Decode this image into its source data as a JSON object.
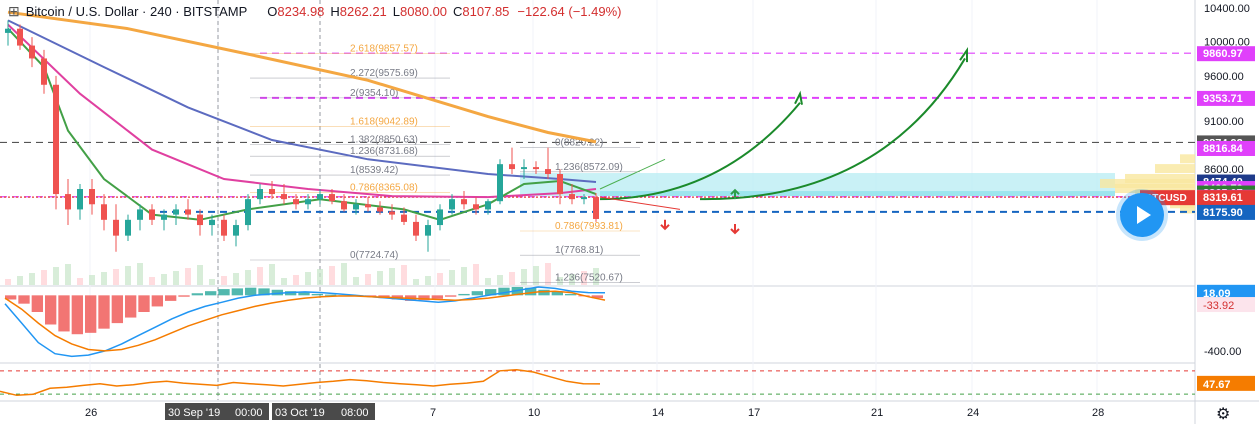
{
  "header": {
    "title": "Bitcoin / U.S. Dollar · 240 · BITSTAMP",
    "open_label": "O",
    "open": "8234.98",
    "high_label": "H",
    "high": "8262.21",
    "low_label": "L",
    "low": "8080.00",
    "close_label": "C",
    "close": "8107.85",
    "change": "−122.64 (−1.49%)"
  },
  "chart_data": [
    {
      "type": "line",
      "panel": "price",
      "scale": "log",
      "ylim": [
        7500,
        10500
      ],
      "yticks": [
        "10400.00",
        "10000.00",
        "9600.00",
        "9100.00",
        "8600.00"
      ],
      "xticks": [
        "26",
        "30 Sep '19",
        "00:00",
        "03 Oct '19",
        "08:00",
        "7",
        "10",
        "14",
        "17",
        "21",
        "24",
        "28"
      ],
      "x_range": [
        0,
        100
      ],
      "candles": [
        {
          "x": 0,
          "o": 10100,
          "h": 10250,
          "l": 9950,
          "c": 10150
        },
        {
          "x": 1,
          "o": 10150,
          "h": 10200,
          "l": 9900,
          "c": 9950
        },
        {
          "x": 2,
          "o": 9950,
          "h": 10050,
          "l": 9700,
          "c": 9800
        },
        {
          "x": 3,
          "o": 9800,
          "h": 9900,
          "l": 9400,
          "c": 9500
        },
        {
          "x": 4,
          "o": 9500,
          "h": 9600,
          "l": 8200,
          "c": 8350
        },
        {
          "x": 5,
          "o": 8350,
          "h": 8500,
          "l": 8050,
          "c": 8200
        },
        {
          "x": 6,
          "o": 8200,
          "h": 8450,
          "l": 8100,
          "c": 8400
        },
        {
          "x": 7,
          "o": 8400,
          "h": 8500,
          "l": 8150,
          "c": 8250
        },
        {
          "x": 8,
          "o": 8250,
          "h": 8350,
          "l": 8000,
          "c": 8100
        },
        {
          "x": 9,
          "o": 8100,
          "h": 8250,
          "l": 7800,
          "c": 7950
        },
        {
          "x": 10,
          "o": 7950,
          "h": 8150,
          "l": 7900,
          "c": 8100
        },
        {
          "x": 11,
          "o": 8100,
          "h": 8250,
          "l": 8000,
          "c": 8200
        },
        {
          "x": 12,
          "o": 8200,
          "h": 8250,
          "l": 8050,
          "c": 8100
        },
        {
          "x": 13,
          "o": 8100,
          "h": 8200,
          "l": 8000,
          "c": 8150
        },
        {
          "x": 14,
          "o": 8150,
          "h": 8250,
          "l": 8050,
          "c": 8200
        },
        {
          "x": 15,
          "o": 8200,
          "h": 8300,
          "l": 8100,
          "c": 8150
        },
        {
          "x": 16,
          "o": 8150,
          "h": 8200,
          "l": 7950,
          "c": 8050
        },
        {
          "x": 17,
          "o": 8050,
          "h": 8150,
          "l": 7950,
          "c": 8100
        },
        {
          "x": 18,
          "o": 8100,
          "h": 8150,
          "l": 7900,
          "c": 7950
        },
        {
          "x": 19,
          "o": 7950,
          "h": 8100,
          "l": 7850,
          "c": 8050
        },
        {
          "x": 20,
          "o": 8050,
          "h": 8350,
          "l": 8000,
          "c": 8300
        },
        {
          "x": 21,
          "o": 8300,
          "h": 8450,
          "l": 8250,
          "c": 8400
        },
        {
          "x": 22,
          "o": 8400,
          "h": 8480,
          "l": 8300,
          "c": 8350
        },
        {
          "x": 23,
          "o": 8350,
          "h": 8450,
          "l": 8250,
          "c": 8300
        },
        {
          "x": 24,
          "o": 8300,
          "h": 8350,
          "l": 8200,
          "c": 8250
        },
        {
          "x": 25,
          "o": 8250,
          "h": 8350,
          "l": 8200,
          "c": 8300
        },
        {
          "x": 26,
          "o": 8300,
          "h": 8400,
          "l": 8250,
          "c": 8350
        },
        {
          "x": 27,
          "o": 8350,
          "h": 8400,
          "l": 8250,
          "c": 8280
        },
        {
          "x": 28,
          "o": 8280,
          "h": 8350,
          "l": 8180,
          "c": 8200
        },
        {
          "x": 29,
          "o": 8200,
          "h": 8300,
          "l": 8150,
          "c": 8250
        },
        {
          "x": 30,
          "o": 8250,
          "h": 8320,
          "l": 8180,
          "c": 8220
        },
        {
          "x": 31,
          "o": 8220,
          "h": 8280,
          "l": 8150,
          "c": 8180
        },
        {
          "x": 32,
          "o": 8180,
          "h": 8250,
          "l": 8100,
          "c": 8150
        },
        {
          "x": 33,
          "o": 8150,
          "h": 8220,
          "l": 8050,
          "c": 8080
        },
        {
          "x": 34,
          "o": 8080,
          "h": 8150,
          "l": 7900,
          "c": 7950
        },
        {
          "x": 35,
          "o": 7950,
          "h": 8100,
          "l": 7800,
          "c": 8050
        },
        {
          "x": 36,
          "o": 8050,
          "h": 8250,
          "l": 8000,
          "c": 8200
        },
        {
          "x": 37,
          "o": 8200,
          "h": 8350,
          "l": 8150,
          "c": 8300
        },
        {
          "x": 38,
          "o": 8300,
          "h": 8380,
          "l": 8200,
          "c": 8250
        },
        {
          "x": 39,
          "o": 8250,
          "h": 8320,
          "l": 8150,
          "c": 8200
        },
        {
          "x": 40,
          "o": 8200,
          "h": 8300,
          "l": 8150,
          "c": 8280
        },
        {
          "x": 41,
          "o": 8280,
          "h": 8700,
          "l": 8250,
          "c": 8650
        },
        {
          "x": 42,
          "o": 8650,
          "h": 8820,
          "l": 8550,
          "c": 8600
        },
        {
          "x": 43,
          "o": 8600,
          "h": 8700,
          "l": 8500,
          "c": 8620
        },
        {
          "x": 44,
          "o": 8620,
          "h": 8680,
          "l": 8550,
          "c": 8600
        },
        {
          "x": 45,
          "o": 8600,
          "h": 8820,
          "l": 8500,
          "c": 8550
        },
        {
          "x": 46,
          "o": 8550,
          "h": 8600,
          "l": 8250,
          "c": 8350
        },
        {
          "x": 47,
          "o": 8350,
          "h": 8450,
          "l": 8250,
          "c": 8300
        },
        {
          "x": 48,
          "o": 8300,
          "h": 8350,
          "l": 8250,
          "c": 8320
        },
        {
          "x": 49,
          "o": 8320,
          "h": 8360,
          "l": 8080,
          "c": 8108
        }
      ],
      "moving_averages": [
        {
          "color": "#f4a742",
          "points": [
            [
              0,
              10350
            ],
            [
              10,
              10150
            ],
            [
              20,
              9850
            ],
            [
              30,
              9550
            ],
            [
              40,
              9150
            ],
            [
              45,
              8980
            ],
            [
              49,
              8880
            ]
          ]
        },
        {
          "color": "#5c6bc0",
          "points": [
            [
              0,
              10250
            ],
            [
              8,
              9700
            ],
            [
              15,
              9250
            ],
            [
              22,
              8900
            ],
            [
              30,
              8700
            ],
            [
              40,
              8550
            ],
            [
              46,
              8500
            ],
            [
              49,
              8470
            ]
          ]
        },
        {
          "color": "#e040a0",
          "points": [
            [
              0,
              10200
            ],
            [
              6,
              9400
            ],
            [
              12,
              8800
            ],
            [
              18,
              8500
            ],
            [
              25,
              8400
            ],
            [
              32,
              8330
            ],
            [
              40,
              8320
            ],
            [
              46,
              8360
            ],
            [
              49,
              8400
            ]
          ]
        },
        {
          "color": "#43a047",
          "points": [
            [
              0,
              10150
            ],
            [
              3,
              9700
            ],
            [
              5,
              9000
            ],
            [
              8,
              8500
            ],
            [
              12,
              8150
            ],
            [
              16,
              8100
            ],
            [
              20,
              8200
            ],
            [
              26,
              8300
            ],
            [
              33,
              8200
            ],
            [
              36,
              8100
            ],
            [
              40,
              8250
            ],
            [
              43,
              8450
            ],
            [
              46,
              8480
            ],
            [
              49,
              8350
            ]
          ]
        }
      ],
      "horizontal_levels": [
        {
          "price": 9860.97,
          "label": "9860.97",
          "color": "#e040fb",
          "style": "dash"
        },
        {
          "price": 9353.71,
          "label": "9353.71",
          "color": "#e040fb",
          "style": "dash"
        },
        {
          "price": 8874.92,
          "label": "8874.92",
          "color": "#555555",
          "style": "dash"
        },
        {
          "price": 8816.84,
          "label": "8816.84",
          "color": "#e040fb",
          "style": "none"
        },
        {
          "price": 8474.49,
          "label": "8474.49",
          "color": "#1e3a8a",
          "style": "none"
        },
        {
          "price": 8409.7,
          "label": "8409.70",
          "color": "#e040fb",
          "style": "none"
        },
        {
          "price": 8365.07,
          "label": "8365.07",
          "color": "#2e7d32",
          "style": "none"
        },
        {
          "price": 8323.37,
          "label": "8323.37",
          "color": "#e040fb",
          "style": "dash"
        },
        {
          "price": 8319.61,
          "label": "8319.61",
          "color": "#e53935",
          "style": "dot"
        },
        {
          "price": 8175.9,
          "label": "8175.90",
          "color": "#1565c0",
          "style": "dash"
        }
      ],
      "symbol_label": "BTCUSD",
      "fib_labels": [
        "2.618(9857.57)",
        "2.272(9575.69)",
        "2(9354.10)",
        "1.618(9042.89)",
        "1.382(8850.63)",
        "1.236(8731.68)",
        "1(8539.42)",
        "0.786(8365.08)",
        "0(7724.74)",
        "0(8820.22)",
        "1.236(8572.09)",
        "0.786(7993.81)",
        "1(7768.81)",
        "1.236(7520.67)"
      ]
    },
    {
      "type": "bar",
      "panel": "macd",
      "ylim": [
        -480,
        60
      ],
      "yticks": [
        "-400.00"
      ],
      "last_values": {
        "macd": "18.09",
        "signal": "-33.92"
      },
      "histogram": [
        -30,
        -60,
        -120,
        -210,
        -260,
        -280,
        -270,
        -240,
        -200,
        -160,
        -120,
        -80,
        -40,
        -10,
        15,
        30,
        45,
        50,
        55,
        50,
        40,
        30,
        20,
        10,
        5,
        0,
        -5,
        -10,
        -20,
        -30,
        -40,
        -35,
        -25,
        -10,
        10,
        30,
        45,
        55,
        60,
        55,
        40,
        25,
        10,
        -5,
        -20
      ],
      "macd_line": [
        -60,
        -200,
        -340,
        -420,
        -440,
        -430,
        -400,
        -350,
        -290,
        -230,
        -170,
        -120,
        -80,
        -50,
        -20,
        0,
        10,
        20,
        25,
        20,
        10,
        0,
        -10,
        -20,
        -30,
        -40,
        -50,
        -40,
        -20,
        0,
        20,
        40,
        60,
        50,
        30,
        20,
        18
      ],
      "signal_line": [
        -20,
        -100,
        -200,
        -290,
        -350,
        -390,
        -400,
        -390,
        -360,
        -320,
        -270,
        -220,
        -180,
        -140,
        -110,
        -80,
        -55,
        -35,
        -20,
        -10,
        -5,
        -5,
        -10,
        -15,
        -20,
        -25,
        -30,
        -35,
        -30,
        -20,
        -5,
        10,
        25,
        30,
        20,
        -10,
        -34
      ]
    },
    {
      "type": "line",
      "panel": "rsi",
      "ylim": [
        20,
        80
      ],
      "last_value": "47.67",
      "levels": [
        70,
        30
      ],
      "values": [
        35,
        28,
        30,
        40,
        42,
        45,
        48,
        44,
        46,
        50,
        52,
        49,
        47,
        45,
        50,
        48,
        46,
        44,
        47,
        50,
        52,
        55,
        53,
        50,
        48,
        46,
        44,
        47,
        49,
        52,
        70,
        72,
        68,
        60,
        52,
        48,
        47.67
      ]
    }
  ]
}
